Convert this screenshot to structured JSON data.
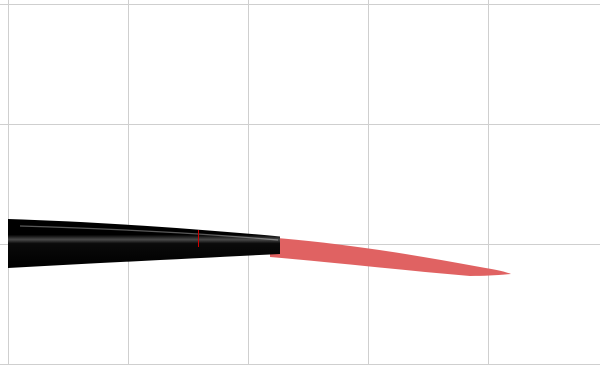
{
  "scene": {
    "background_color": "#ffffff",
    "grid_color": "#cfcfcf",
    "grid_visible": true,
    "objects": [
      {
        "name": "black-tapered-shape",
        "color": "#000000",
        "highlight_color": "#ffffff"
      },
      {
        "name": "red-tapered-shape",
        "color": "#e06262"
      }
    ],
    "marker_color": "#cc0000"
  }
}
